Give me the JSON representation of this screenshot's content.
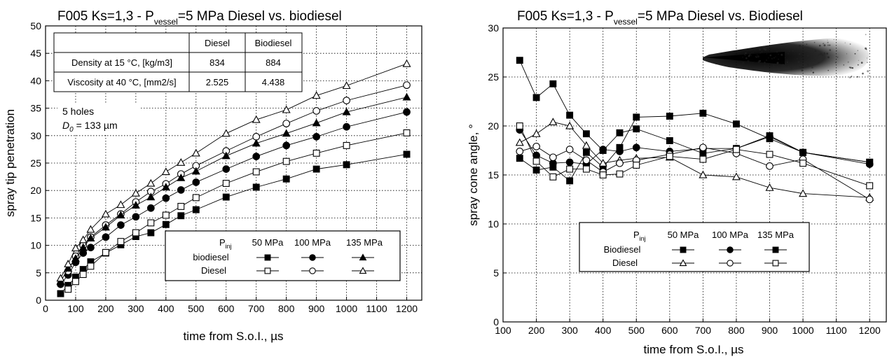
{
  "chart_data": [
    {
      "type": "line",
      "title_prefix": "F005 Ks=1,3 - P",
      "title_sub": "vessel",
      "title_suffix": "=5 MPa  Diesel vs. biodiesel",
      "xlabel": "time from S.o.I., µs",
      "ylabel": "spray tip penetration",
      "xlim": [
        0,
        1250
      ],
      "ylim": [
        0,
        50
      ],
      "xticks": [
        0,
        100,
        200,
        300,
        400,
        500,
        600,
        700,
        800,
        900,
        1000,
        1100,
        1200
      ],
      "yticks": [
        0,
        5,
        10,
        15,
        20,
        25,
        30,
        35,
        40,
        45,
        50
      ],
      "grid": true,
      "series": [
        {
          "name": "biodiesel 50 MPa",
          "marker": "square",
          "filled": true,
          "x": [
            50,
            75,
            100,
            125,
            150,
            200,
            250,
            300,
            350,
            400,
            450,
            500,
            600,
            700,
            800,
            900,
            1000,
            1200
          ],
          "y": [
            1.2,
            2.7,
            4.2,
            5.6,
            7.0,
            8.6,
            10.1,
            11.6,
            12.3,
            13.8,
            15.4,
            16.5,
            18.8,
            20.6,
            22.1,
            23.9,
            24.7,
            26.6
          ]
        },
        {
          "name": "Diesel 50 MPa",
          "marker": "square",
          "filled": false,
          "x": [
            75,
            100,
            125,
            150,
            200,
            250,
            300,
            350,
            400,
            450,
            500,
            600,
            700,
            800,
            900,
            1000,
            1200
          ],
          "y": [
            2.0,
            3.4,
            4.7,
            6.2,
            8.7,
            10.7,
            12.3,
            14.1,
            15.5,
            17.1,
            18.7,
            21.3,
            23.4,
            25.3,
            26.8,
            28.2,
            30.5
          ]
        },
        {
          "name": "biodiesel 100 MPa",
          "marker": "circle",
          "filled": true,
          "x": [
            50,
            75,
            100,
            125,
            150,
            200,
            250,
            300,
            350,
            400,
            450,
            500,
            600,
            700,
            800,
            900,
            1000,
            1200
          ],
          "y": [
            2.9,
            4.6,
            6.9,
            8.6,
            9.6,
            11.5,
            13.7,
            15.2,
            16.8,
            18.6,
            20.1,
            21.5,
            23.9,
            26.2,
            28.2,
            29.8,
            31.6,
            34.3
          ]
        },
        {
          "name": "Diesel 100 MPa",
          "marker": "circle",
          "filled": false,
          "x": [
            75,
            100,
            125,
            150,
            200,
            250,
            300,
            350,
            400,
            450,
            500,
            600,
            700,
            800,
            900,
            1000,
            1200
          ],
          "y": [
            5.3,
            8.0,
            10.0,
            11.5,
            13.7,
            15.7,
            17.9,
            19.8,
            21.2,
            23.0,
            24.5,
            27.2,
            29.8,
            32.2,
            34.5,
            36.4,
            39.2
          ]
        },
        {
          "name": "biodiesel 135 MPa",
          "marker": "triangle",
          "filled": true,
          "x": [
            50,
            75,
            100,
            125,
            150,
            200,
            250,
            300,
            350,
            400,
            450,
            500,
            600,
            700,
            800,
            900,
            1000,
            1200
          ],
          "y": [
            3.4,
            5.8,
            7.6,
            9.6,
            11.3,
            13.3,
            15.5,
            17.3,
            18.8,
            20.6,
            22.3,
            23.5,
            26.3,
            28.6,
            30.4,
            32.3,
            34.3,
            37.0
          ]
        },
        {
          "name": "Diesel 135 MPa",
          "marker": "triangle",
          "filled": false,
          "x": [
            50,
            75,
            100,
            125,
            150,
            200,
            250,
            300,
            350,
            400,
            450,
            500,
            600,
            700,
            800,
            900,
            1000,
            1200
          ],
          "y": [
            4.0,
            6.6,
            9.5,
            11.0,
            12.9,
            15.7,
            17.4,
            19.5,
            21.3,
            23.4,
            25.1,
            26.8,
            30.4,
            32.9,
            34.7,
            37.3,
            39.1,
            43.1
          ]
        }
      ],
      "info_table": {
        "headers": [
          "",
          "Diesel",
          "Biodiesel"
        ],
        "rows": [
          [
            "Density at 15 °C, [kg/m3]",
            "834",
            "884"
          ],
          [
            "Viscosity at 40 °C, [mm2/s]",
            "2.525",
            "4.438"
          ]
        ]
      },
      "annotation": {
        "line1": "5 holes",
        "line2_symbol": "D",
        "line2_sub": "0",
        "line2_rest": " = 133 µm"
      },
      "legend": {
        "placement": "bottom-right",
        "header_label": "P",
        "header_sub": "inj",
        "columns": [
          "50 MPa",
          "100 MPa",
          "135 MPa"
        ],
        "row_labels": [
          "biodiesel",
          "Diesel"
        ]
      }
    },
    {
      "type": "line",
      "title_prefix": "F005 Ks=1,3 - P",
      "title_sub": "vessel",
      "title_suffix": "=5 MPa  Diesel vs. Biodiesel",
      "xlabel": "time from S.o.I., µs",
      "ylabel": "spray cone angle, °",
      "xlim": [
        100,
        1250
      ],
      "ylim": [
        0,
        30
      ],
      "xticks": [
        100,
        200,
        300,
        400,
        500,
        600,
        700,
        800,
        900,
        1000,
        1100,
        1200
      ],
      "yticks": [
        0,
        5,
        10,
        15,
        20,
        25,
        30
      ],
      "grid": true,
      "series": [
        {
          "name": "Biodiesel 50 MPa",
          "marker": "square",
          "filled": true,
          "x": [
            150,
            200,
            250,
            300,
            350,
            400,
            450,
            500,
            600,
            700,
            800,
            900,
            1000,
            1200
          ],
          "y": [
            26.7,
            22.9,
            24.3,
            21.1,
            19.2,
            17.5,
            19.3,
            19.7,
            18.5,
            17.2,
            17.7,
            19.0,
            17.3,
            16.3
          ]
        },
        {
          "name": "Biodiesel 100 MPa",
          "marker": "circle",
          "filled": true,
          "x": [
            150,
            200,
            250,
            300,
            350,
            400,
            450,
            500,
            600,
            700,
            800,
            900,
            1000,
            1200
          ],
          "y": [
            19.6,
            17.0,
            16.2,
            16.3,
            16.1,
            17.6,
            17.4,
            17.8,
            17.4,
            17.7,
            17.7,
            18.9,
            17.3,
            16.1
          ]
        },
        {
          "name": "Biodiesel 135 MPa",
          "marker": "square",
          "filled": true,
          "x": [
            150,
            200,
            250,
            300,
            350,
            400,
            450,
            500,
            600,
            700,
            800,
            900,
            1000,
            1200
          ],
          "y": [
            16.7,
            15.5,
            15.8,
            14.4,
            17.3,
            15.8,
            17.8,
            20.9,
            21.0,
            21.3,
            20.2,
            18.7,
            17.3,
            16.3
          ]
        },
        {
          "name": "Diesel 50 MPa",
          "marker": "triangle",
          "filled": false,
          "x": [
            150,
            200,
            250,
            300,
            350,
            400,
            450,
            500,
            600,
            700,
            800,
            900,
            1000,
            1200
          ],
          "y": [
            18.3,
            19.2,
            20.4,
            20.0,
            18.0,
            16.2,
            16.5,
            16.7,
            16.8,
            15.0,
            14.8,
            13.7,
            13.1,
            12.7
          ]
        },
        {
          "name": "Diesel 100 MPa",
          "marker": "circle",
          "filled": false,
          "x": [
            150,
            200,
            250,
            300,
            350,
            400,
            450,
            500,
            600,
            700,
            800,
            900,
            1000,
            1200
          ],
          "y": [
            17.4,
            17.9,
            16.8,
            17.6,
            16.5,
            15.3,
            16.2,
            16.5,
            17.1,
            17.8,
            17.2,
            15.9,
            16.6,
            12.5
          ]
        },
        {
          "name": "Diesel 135 MPa",
          "marker": "square",
          "filled": false,
          "x": [
            150,
            200,
            250,
            300,
            350,
            400,
            450,
            500,
            600,
            700,
            800,
            900,
            1000,
            1200
          ],
          "y": [
            20.0,
            16.4,
            14.8,
            15.6,
            15.6,
            15.0,
            15.1,
            16.0,
            16.9,
            16.6,
            17.6,
            17.1,
            16.2,
            13.9
          ]
        }
      ],
      "legend": {
        "placement": "bottom-center",
        "header_label": "P",
        "header_sub": "inj",
        "columns": [
          "50 MPa",
          "100 MPa",
          "135 MPa"
        ],
        "row_labels": [
          "Biodiesel",
          "Diesel"
        ]
      },
      "inset_image": "spray-plume-photo"
    }
  ]
}
